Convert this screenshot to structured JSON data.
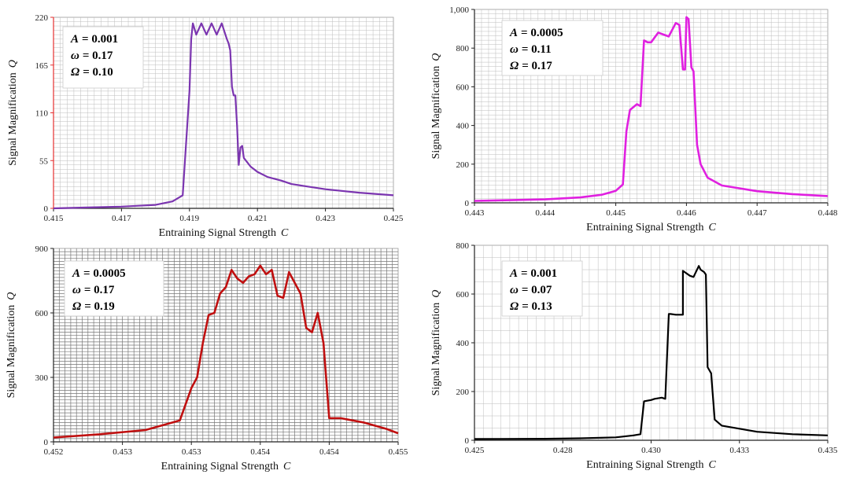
{
  "chart_data": [
    {
      "type": "line",
      "xlabel": "Entraining Signal Strength",
      "xlabel_symbol": "C",
      "ylabel": "Signal Magnification",
      "ylabel_symbol": "Q",
      "xlim": [
        0.415,
        0.425
      ],
      "ylim": [
        0,
        220
      ],
      "x_ticks": [
        "0.415",
        "0.417",
        "0.419",
        "0.421",
        "0.423",
        "0.425"
      ],
      "y_ticks": [
        "0",
        "55",
        "110",
        "165",
        "220"
      ],
      "grid": "fine",
      "params": [
        {
          "sym": "A",
          "val": "= 0.001"
        },
        {
          "sym": "ω",
          "val": "= 0.17"
        },
        {
          "sym": "Ω",
          "val": "= 0.10"
        }
      ],
      "color": "#7b35b0",
      "series": [
        {
          "x": [
            0.415,
            0.416,
            0.417,
            0.4175,
            0.418,
            0.4185,
            0.4188,
            0.419,
            0.41905,
            0.4191,
            0.4192,
            0.41935,
            0.4195,
            0.41965,
            0.4198,
            0.41995,
            0.4201,
            0.42015,
            0.4202,
            0.42025,
            0.4203,
            0.42035,
            0.4204,
            0.42045,
            0.4205,
            0.42055,
            0.4206,
            0.4208,
            0.421,
            0.4213,
            0.4217,
            0.422,
            0.4225,
            0.423,
            0.424,
            0.425
          ],
          "y": [
            0,
            1,
            2,
            3,
            4,
            8,
            15,
            135,
            195,
            213,
            200,
            213,
            200,
            213,
            200,
            213,
            195,
            190,
            182,
            140,
            130,
            130,
            95,
            50,
            70,
            72,
            58,
            48,
            42,
            36,
            32,
            28,
            25,
            22,
            18,
            15
          ]
        }
      ]
    },
    {
      "type": "line",
      "xlabel": "Entraining Signal Strength",
      "xlabel_symbol": "C",
      "ylabel": "Signal Magnification",
      "ylabel_symbol": "Q",
      "xlim": [
        0.443,
        0.448
      ],
      "ylim": [
        0,
        1000
      ],
      "x_ticks": [
        "0.443",
        "0.444",
        "0.445",
        "0.446",
        "0.447",
        "0.448"
      ],
      "y_ticks": [
        "0",
        "200",
        "400",
        "600",
        "800",
        "1,000"
      ],
      "grid": "fine",
      "params": [
        {
          "sym": "A",
          "val": "= 0.0005"
        },
        {
          "sym": "ω",
          "val": "= 0.11"
        },
        {
          "sym": "Ω",
          "val": "= 0.17"
        }
      ],
      "color": "#e020e0",
      "series": [
        {
          "x": [
            0.443,
            0.4435,
            0.444,
            0.4445,
            0.4448,
            0.445,
            0.4451,
            0.44515,
            0.4452,
            0.4453,
            0.44535,
            0.4454,
            0.44545,
            0.4455,
            0.4456,
            0.44575,
            0.44585,
            0.4459,
            0.44595,
            0.44598,
            0.446,
            0.44603,
            0.44607,
            0.4461,
            0.44615,
            0.4462,
            0.4463,
            0.4465,
            0.447,
            0.4475,
            0.448
          ],
          "y": [
            10,
            14,
            18,
            28,
            42,
            62,
            95,
            370,
            480,
            510,
            500,
            840,
            830,
            830,
            880,
            860,
            930,
            920,
            690,
            690,
            960,
            950,
            700,
            680,
            300,
            200,
            130,
            90,
            60,
            45,
            35
          ]
        }
      ]
    },
    {
      "type": "line",
      "xlabel": "Entraining Signal Strength",
      "xlabel_symbol": "C",
      "ylabel": "Signal Magnification",
      "ylabel_symbol": "Q",
      "xlim": [
        0.452,
        0.455
      ],
      "ylim": [
        0,
        900
      ],
      "x_ticks": [
        "0.452",
        "0.453",
        "0.453",
        "0.454",
        "0.454",
        "0.455"
      ],
      "y_ticks": [
        "0",
        "300",
        "600",
        "900"
      ],
      "grid": "dense",
      "params": [
        {
          "sym": "A",
          "val": "= 0.0005"
        },
        {
          "sym": "ω",
          "val": "= 0.17"
        },
        {
          "sym": "Ω",
          "val": "= 0.19"
        }
      ],
      "color": "#c01010",
      "series": [
        {
          "x": [
            0.452,
            0.4524,
            0.4528,
            0.4531,
            0.4532,
            0.45325,
            0.4533,
            0.45335,
            0.4534,
            0.45345,
            0.4535,
            0.45355,
            0.4536,
            0.45365,
            0.4537,
            0.45375,
            0.4538,
            0.45385,
            0.4539,
            0.45395,
            0.454,
            0.45405,
            0.4541,
            0.45415,
            0.4542,
            0.45425,
            0.4543,
            0.45435,
            0.4544,
            0.4545,
            0.4546,
            0.4547,
            0.4548,
            0.4549,
            0.455
          ],
          "y": [
            20,
            35,
            55,
            100,
            250,
            300,
            460,
            590,
            600,
            690,
            720,
            800,
            760,
            740,
            770,
            780,
            820,
            780,
            800,
            680,
            670,
            790,
            740,
            690,
            530,
            510,
            600,
            460,
            110,
            110,
            100,
            90,
            75,
            60,
            40
          ]
        }
      ]
    },
    {
      "type": "line",
      "xlabel": "Entraining Signal Strength",
      "xlabel_symbol": "C",
      "ylabel": "Signal Magnification",
      "ylabel_symbol": "Q",
      "xlim": [
        0.425,
        0.435
      ],
      "ylim": [
        0,
        800
      ],
      "x_ticks": [
        "0.425",
        "0.428",
        "0.430",
        "0.433",
        "0.435"
      ],
      "y_ticks": [
        "0",
        "200",
        "400",
        "600",
        "800"
      ],
      "grid": "coarse",
      "params": [
        {
          "sym": "A",
          "val": "= 0.001"
        },
        {
          "sym": "ω",
          "val": "= 0.07"
        },
        {
          "sym": "Ω",
          "val": "= 0.13"
        }
      ],
      "color": "#000000",
      "series": [
        {
          "x": [
            0.425,
            0.427,
            0.428,
            0.429,
            0.4295,
            0.4297,
            0.4298,
            0.43,
            0.4301,
            0.4303,
            0.4304,
            0.4305,
            0.43055,
            0.4307,
            0.4309,
            0.4309,
            0.43095,
            0.4311,
            0.4312,
            0.43135,
            0.4314,
            0.4315,
            0.43155,
            0.4316,
            0.4317,
            0.4318,
            0.432,
            0.433,
            0.434,
            0.435
          ],
          "y": [
            5,
            6,
            8,
            12,
            20,
            25,
            160,
            165,
            170,
            175,
            170,
            518,
            518,
            515,
            515,
            695,
            690,
            675,
            670,
            715,
            700,
            690,
            680,
            300,
            275,
            85,
            60,
            35,
            25,
            20
          ]
        }
      ]
    }
  ]
}
